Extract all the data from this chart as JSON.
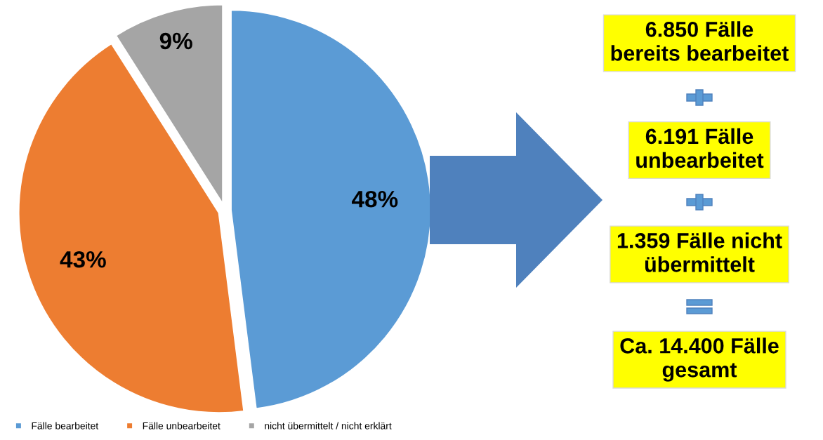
{
  "chart_data": {
    "type": "pie",
    "categories": [
      "Fälle bearbeitet",
      "Fälle unbearbeitet",
      "nicht übermittelt / nicht erklärt"
    ],
    "values": [
      48,
      43,
      9
    ],
    "colors": [
      "#5b9bd5",
      "#ed7d31",
      "#a5a5a5"
    ],
    "value_labels": [
      "48%",
      "43%",
      "9%"
    ],
    "legend": "bottom left",
    "annotations": [
      "6.850 Fälle\nbereits bearbeitet",
      "6.191 Fälle\nunbearbeitet",
      "1.359 Fälle nicht\nübermittelt",
      "Ca. 14.400 Fälle\ngesamt"
    ]
  }
}
